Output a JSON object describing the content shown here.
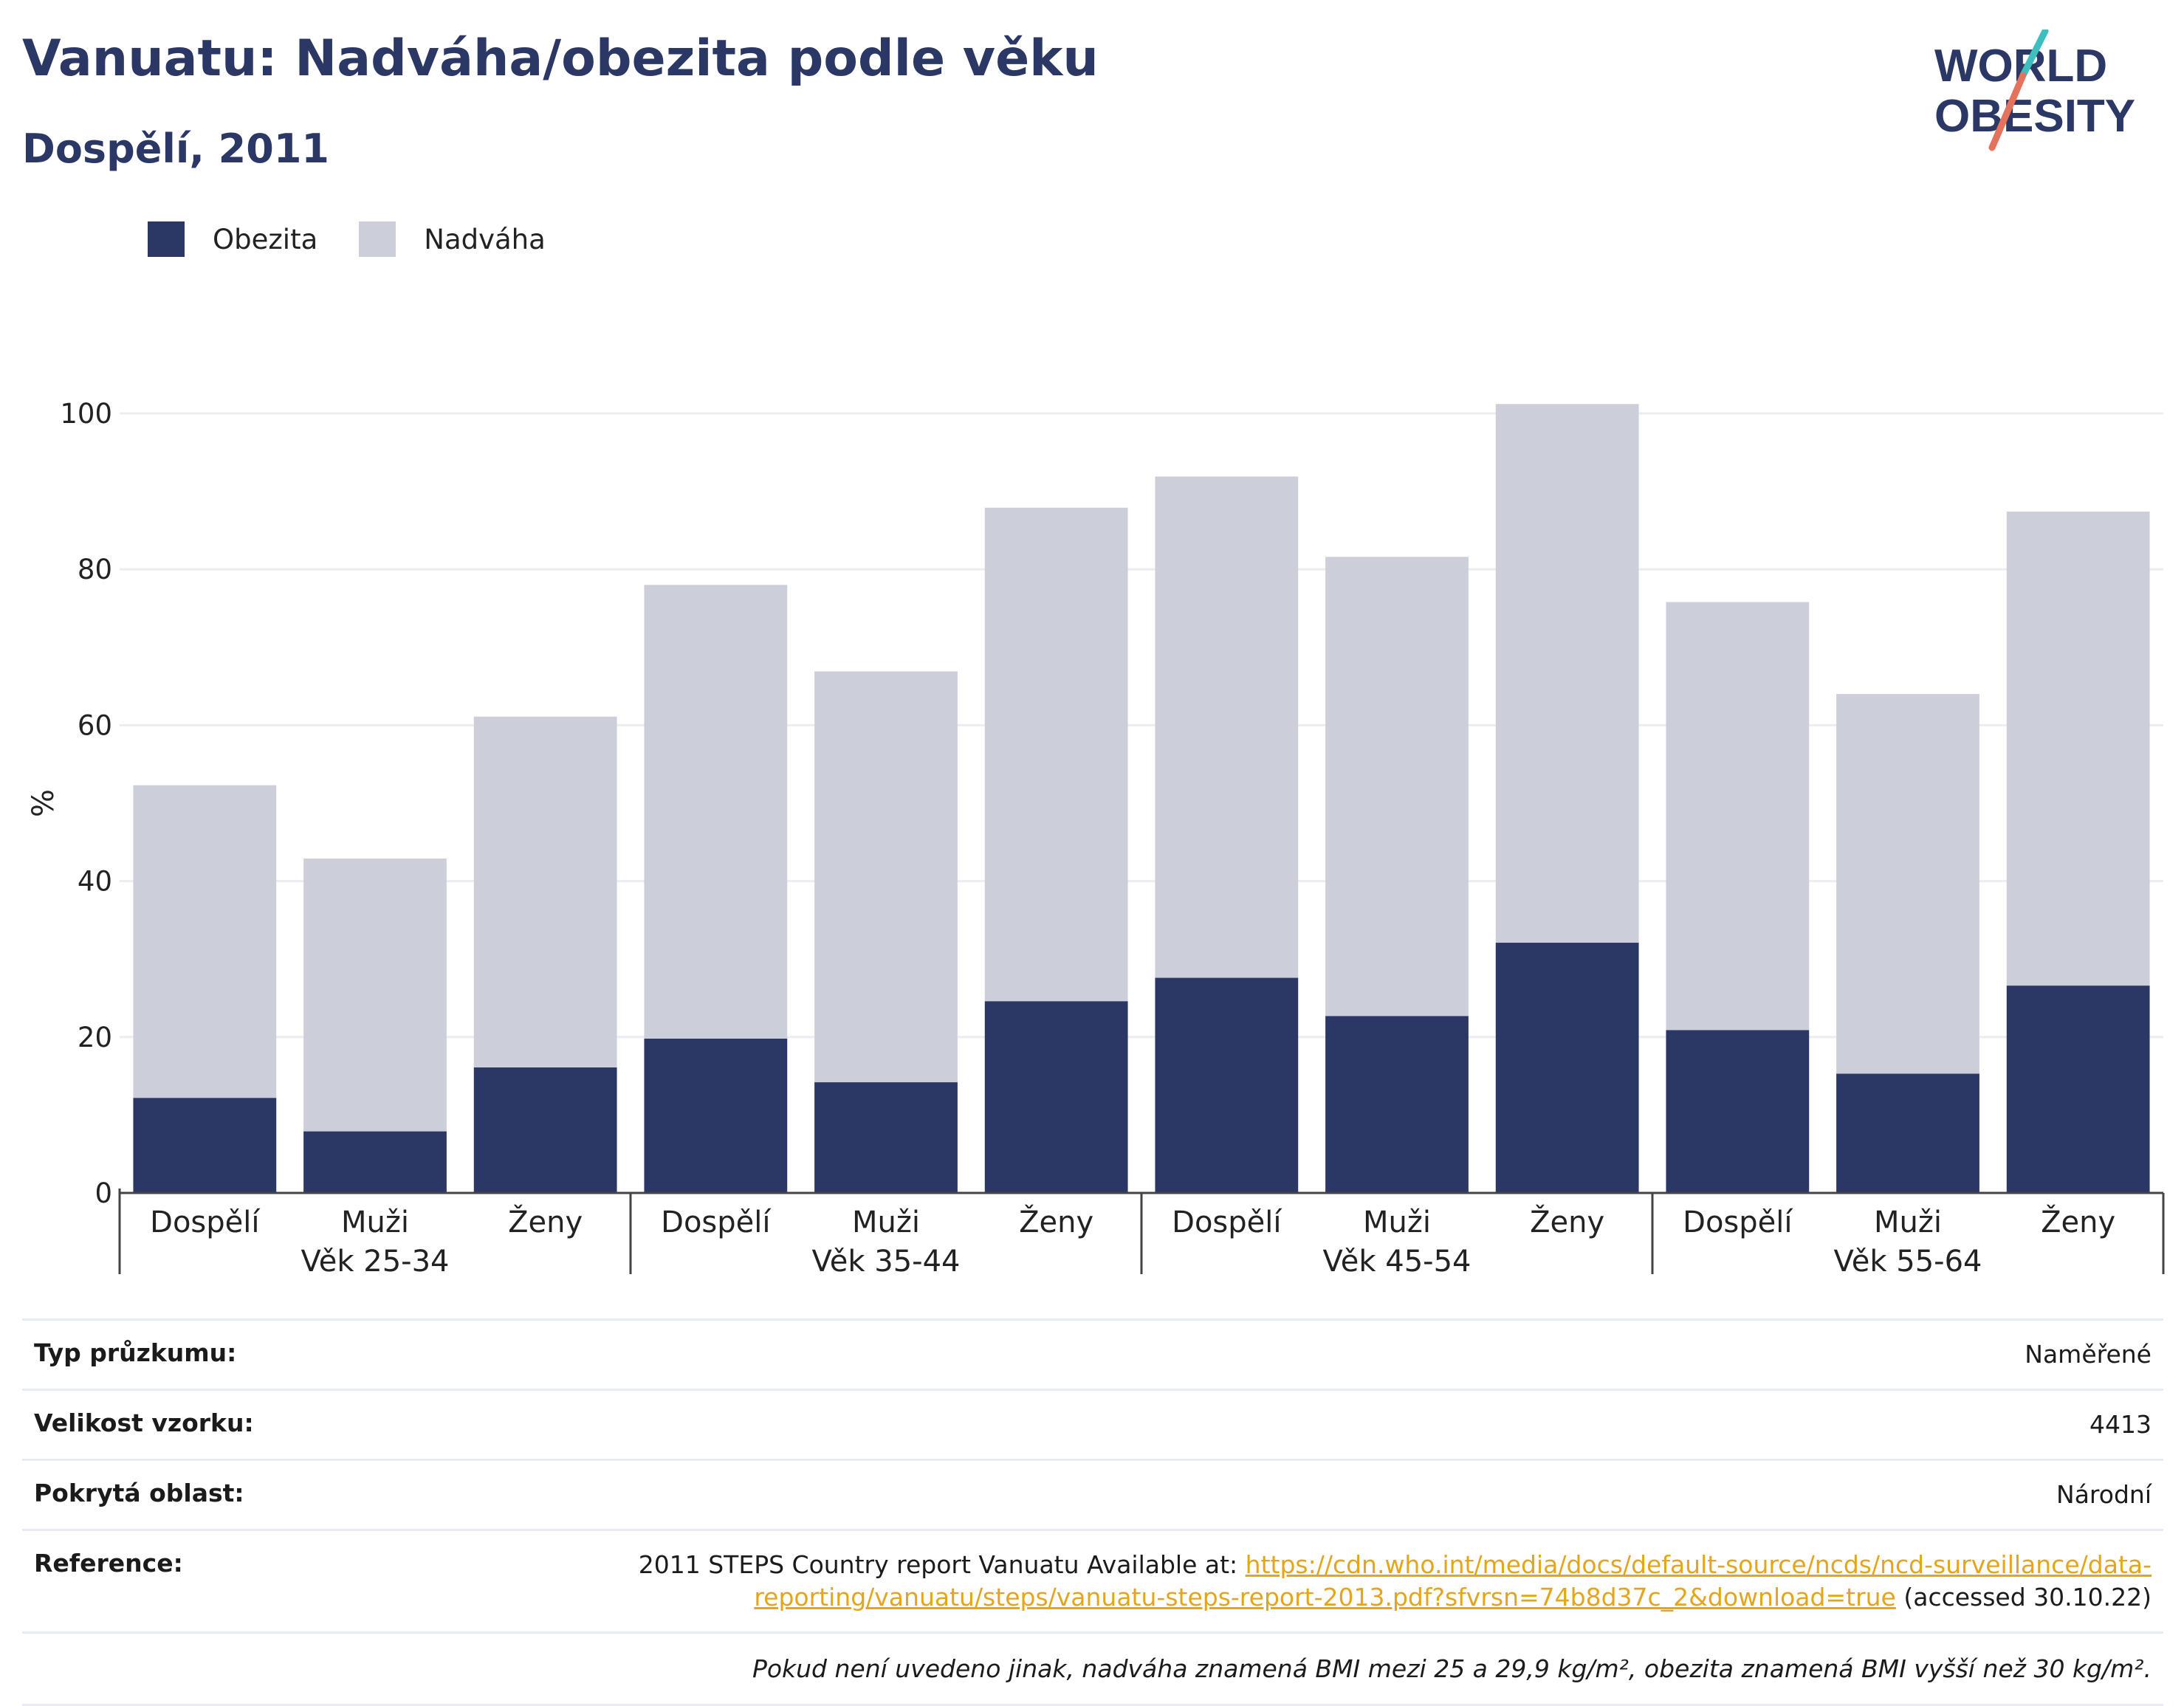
{
  "header": {
    "title": "Vanuatu: Nadváha/obezita podle věku",
    "subtitle": "Dospělí, 2011",
    "logo_line1": "WORLD",
    "logo_line2": "OBESITY"
  },
  "colors": {
    "obesity": "#2b3765",
    "overweight": "#ccced9",
    "link": "#e5a51b",
    "title": "#2b3765"
  },
  "chart_data": {
    "type": "bar",
    "stacked": true,
    "ylabel": "%",
    "ylim": [
      0,
      100
    ],
    "yticks": [
      0,
      20,
      40,
      60,
      80,
      100
    ],
    "grid": true,
    "legend_placement": "top-left",
    "groups": [
      "Věk 25-34",
      "Věk 35-44",
      "Věk 45-54",
      "Věk 55-64"
    ],
    "categories": [
      "Dospělí",
      "Muži",
      "Ženy",
      "Dospělí",
      "Muži",
      "Ženy",
      "Dospělí",
      "Muži",
      "Ženy",
      "Dospělí",
      "Muži",
      "Ženy"
    ],
    "series": [
      {
        "name": "Obezita",
        "values": [
          12.2,
          7.9,
          16.1,
          19.8,
          14.2,
          24.6,
          27.6,
          22.7,
          32.1,
          20.9,
          15.3,
          26.6
        ]
      },
      {
        "name": "Nadváha",
        "values": [
          40.1,
          35.0,
          45.0,
          58.2,
          52.7,
          63.3,
          64.3,
          58.9,
          69.1,
          54.9,
          48.7,
          60.8
        ]
      }
    ]
  },
  "info": {
    "survey_type_label": "Typ průzkumu:",
    "survey_type_value": "Naměřené",
    "sample_size_label": "Velikost vzorku:",
    "sample_size_value": "4413",
    "coverage_label": "Pokrytá oblast:",
    "coverage_value": "Národní",
    "reference_label": "Reference:",
    "reference_text": "2011 STEPS Country report Vanuatu Available at: ",
    "reference_link_1": "https://cdn.who.int/media/docs/default-source/ncds/ncd-surveillance/data-",
    "reference_link_2": "reporting/vanuatu/steps/vanuatu-steps-report-2013.pdf?sfvrsn=74b8d37c_2&download=true",
    "reference_accessed": " (accessed 30.10.22)",
    "note": "Pokud není uvedeno jinak, nadváha znamená BMI mezi 25 a 29,9 kg/m², obezita znamená BMI vyšší než 30 kg/m²."
  }
}
